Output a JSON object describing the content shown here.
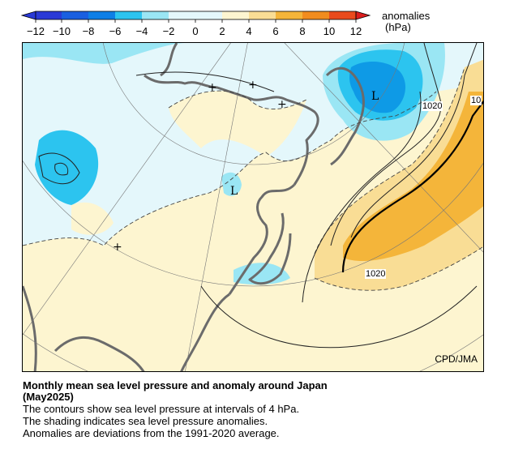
{
  "legend": {
    "title": "anomalies",
    "unit": "(hPa)",
    "ticks": [
      "−12",
      "−10",
      "−8",
      "−6",
      "−4",
      "−2",
      "0",
      "2",
      "4",
      "6",
      "8",
      "10",
      "12"
    ],
    "colors": {
      "neg_strong": "#2a3ad6",
      "neg_mid": "#0e7fe6",
      "neg_light": "#2cc4ef",
      "neg_pale": "#9ae6f4",
      "neutral_neg": "#e4f7fb",
      "neutral_pos": "#fdf5d0",
      "pos_light": "#f9dd95",
      "pos_mid": "#f4b53a",
      "pos_strong": "#f18c1e",
      "pos_deep": "#ea4a1c",
      "pos_max": "#dc1d1d"
    }
  },
  "map": {
    "contour_labels": [
      "1020",
      "1020",
      "10"
    ],
    "center_labels": [
      "L",
      "L"
    ],
    "plus_marks": [
      "+",
      "+",
      "+",
      "+"
    ],
    "credit": "CPD/JMA"
  },
  "caption": {
    "title_line1": "Monthly mean sea level pressure and anomaly around Japan",
    "title_line2": "(May2025)",
    "line1": "The contours show sea level pressure at intervals of 4 hPa.",
    "line2": "The shading indicates sea level pressure anomalies.",
    "line3": "Anomalies are deviations from the 1991-2020 average."
  }
}
